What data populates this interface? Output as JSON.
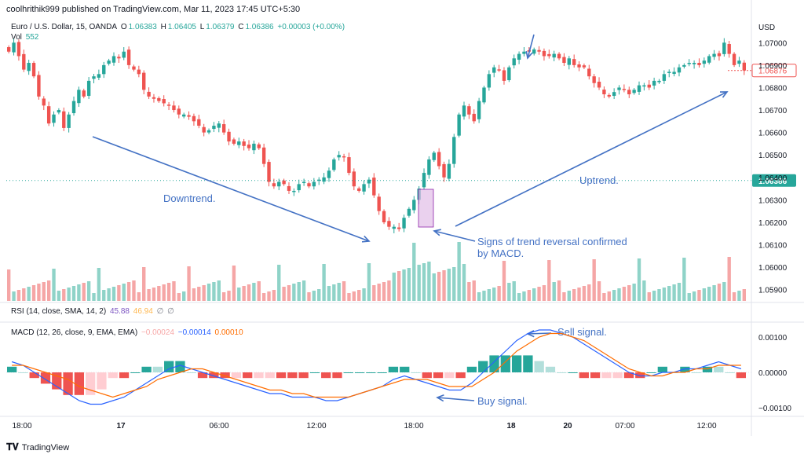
{
  "header": "coolhrithik999 published on TradingView.com, Mar 11, 2023 17:45 UTC+5:30",
  "main_legend": {
    "symbol": "Euro / U.S. Dollar, 15, OANDA",
    "o_label": "O",
    "o": "1.06383",
    "h_label": "H",
    "h": "1.06405",
    "l_label": "L",
    "l": "1.06379",
    "c_label": "C",
    "c": "1.06386",
    "change": "+0.00003 (+0.00%)",
    "vol_label": "Vol",
    "vol": "552"
  },
  "rsi_legend": {
    "label": "RSI (14, close, SMA, 14, 2)",
    "v1": "45.88",
    "v2": "46.94",
    "v3": "∅",
    "v4": "∅"
  },
  "macd_legend": {
    "label": "MACD (12, 26, close, 9, EMA, EMA)",
    "hist": "−0.00024",
    "macd": "−0.00014",
    "signal": "0.00010"
  },
  "currency": "USD",
  "price_axis": [
    "1.07000",
    "1.06900",
    "1.06800",
    "1.06700",
    "1.06600",
    "1.06500",
    "1.06400",
    "1.06300",
    "1.06200",
    "1.06100",
    "1.06000",
    "1.05900"
  ],
  "macd_axis": [
    "0.00100",
    "0.00000",
    "−0.00100"
  ],
  "last_price": "1.06876",
  "current_price": "1.06386",
  "time_axis": [
    "18:00",
    "17",
    "06:00",
    "12:00",
    "18:00",
    "18",
    "20",
    "07:00",
    "12:00"
  ],
  "annotations": {
    "downtrend": "Downtrend.",
    "uptrend": "Uptrend.",
    "reversal_line1": "Signs of trend reversal confirmed",
    "reversal_line2": "by MACD.",
    "sell": "Sell signal.",
    "buy": "Buy signal."
  },
  "footer": "TradingView",
  "colors": {
    "up": "#26a69a",
    "down": "#ef5350",
    "vol_up": "#8fd3c8",
    "vol_down": "#f5a6a6",
    "macd": "#2962ff",
    "signal": "#ff6d00",
    "annot": "#4472c4",
    "highlight": "#e1bee7"
  },
  "chart_data": {
    "type": "candlestick",
    "price_range": [
      1.0585,
      1.0712
    ],
    "macd_range": [
      -0.0012,
      0.0012
    ],
    "close": [
      1.0696,
      1.07,
      1.0694,
      1.0688,
      1.0691,
      1.0685,
      1.0676,
      1.0672,
      1.0664,
      1.0668,
      1.067,
      1.0662,
      1.0668,
      1.0674,
      1.0679,
      1.0676,
      1.0683,
      1.0685,
      1.0686,
      1.069,
      1.0692,
      1.0694,
      1.0693,
      1.0696,
      1.069,
      1.0688,
      1.0686,
      1.0679,
      1.0676,
      1.0675,
      1.0674,
      1.0673,
      1.0672,
      1.067,
      1.0668,
      1.0668,
      1.0667,
      1.0665,
      1.0663,
      1.066,
      1.0661,
      1.0663,
      1.0664,
      1.066,
      1.0656,
      1.0655,
      1.0656,
      1.0654,
      1.0653,
      1.0655,
      1.0653,
      1.0646,
      1.0638,
      1.0636,
      1.0638,
      1.0637,
      1.0634,
      1.0634,
      1.0637,
      1.0638,
      1.0636,
      1.0638,
      1.0639,
      1.064,
      1.0643,
      1.0648,
      1.065,
      1.0649,
      1.0642,
      1.0636,
      1.0634,
      1.0637,
      1.0639,
      1.0632,
      1.0625,
      1.062,
      1.0618,
      1.0618,
      1.0617,
      1.0622,
      1.0626,
      1.063,
      1.0635,
      1.0642,
      1.0648,
      1.0651,
      1.0645,
      1.064,
      1.0646,
      1.0658,
      1.0668,
      1.0672,
      1.0668,
      1.0665,
      1.0674,
      1.068,
      1.0686,
      1.0689,
      1.0688,
      1.0683,
      1.0689,
      1.0693,
      1.0695,
      1.0696,
      1.0696,
      1.0697,
      1.0696,
      1.0694,
      1.0694,
      1.0695,
      1.0693,
      1.0691,
      1.0693,
      1.069,
      1.0689,
      1.0689,
      1.0685,
      1.0682,
      1.068,
      1.0677,
      1.0676,
      1.0678,
      1.068,
      1.0679,
      1.0677,
      1.0679,
      1.0681,
      1.0681,
      1.068,
      1.0683,
      1.0683,
      1.0686,
      1.0687,
      1.0687,
      1.0689,
      1.069,
      1.0691,
      1.0691,
      1.069,
      1.0692,
      1.0694,
      1.0695,
      1.0694,
      1.07,
      1.0695,
      1.069,
      1.0692,
      1.06876
    ],
    "macd": [
      0.0003,
      0.0002,
      0.0,
      -0.0002,
      -0.0004,
      -0.0006,
      -0.0008,
      -0.0009,
      -0.0009,
      -0.0008,
      -0.0007,
      -0.0005,
      -0.0003,
      -0.0001,
      0.0001,
      0.0002,
      0.0001,
      0.0,
      -0.0001,
      -0.0002,
      -0.0003,
      -0.0004,
      -0.0005,
      -0.0006,
      -0.0006,
      -0.0007,
      -0.0007,
      -0.0007,
      -0.0008,
      -0.0008,
      -0.0007,
      -0.0006,
      -0.0005,
      -0.0004,
      -0.0002,
      -0.0001,
      -0.0002,
      -0.0003,
      -0.0004,
      -0.0005,
      -0.0005,
      -0.0003,
      0.0,
      0.0003,
      0.0006,
      0.0009,
      0.0011,
      0.0012,
      0.0012,
      0.0011,
      0.001,
      0.0008,
      0.0006,
      0.0004,
      0.0002,
      0.0,
      -0.0001,
      -0.0001,
      0.0,
      0.0,
      0.0001,
      0.0001,
      0.0002,
      0.0003,
      0.0002,
      0.0001
    ],
    "signal": [
      0.0002,
      0.0002,
      0.0001,
      0.0,
      -0.0001,
      -0.0002,
      -0.0004,
      -0.0005,
      -0.0006,
      -0.0007,
      -0.0006,
      -0.0005,
      -0.0004,
      -0.0002,
      -0.0001,
      0.0,
      0.0001,
      0.0001,
      0.0,
      -0.0001,
      -0.0002,
      -0.0003,
      -0.0004,
      -0.0005,
      -0.0005,
      -0.0006,
      -0.0006,
      -0.0007,
      -0.0007,
      -0.0007,
      -0.0007,
      -0.0006,
      -0.0005,
      -0.0004,
      -0.0003,
      -0.0002,
      -0.0002,
      -0.0002,
      -0.0003,
      -0.0004,
      -0.0004,
      -0.0004,
      -0.0002,
      0.0,
      0.0003,
      0.0006,
      0.0008,
      0.001,
      0.0011,
      0.0011,
      0.001,
      0.0009,
      0.0007,
      0.0005,
      0.0003,
      0.0001,
      0.0,
      -0.0001,
      -0.0001,
      0.0,
      0.0,
      0.0001,
      0.0001,
      0.0002,
      0.0002,
      0.0002
    ]
  }
}
